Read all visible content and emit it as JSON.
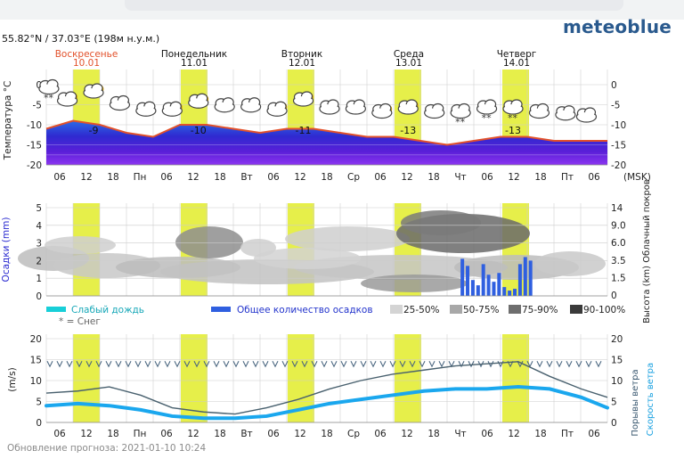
{
  "location": "55.82°N / 37.03°E (198м н.у.м.)",
  "brand": "meteoblue",
  "footer": "Обновление прогноза: 2021-01-10 10:24",
  "days": [
    {
      "name": "Воскресенье",
      "date": "10.01",
      "highlight": true
    },
    {
      "name": "Понедельник",
      "date": "11.01",
      "highlight": false
    },
    {
      "name": "Вторник",
      "date": "12.01",
      "highlight": false
    },
    {
      "name": "Среда",
      "date": "13.01",
      "highlight": false
    },
    {
      "name": "Четверг",
      "date": "14.01",
      "highlight": false
    }
  ],
  "x_ticks": [
    "06",
    "12",
    "18",
    "Пн",
    "06",
    "12",
    "18",
    "Вт",
    "06",
    "12",
    "18",
    "Ср",
    "06",
    "12",
    "18",
    "Чт",
    "06",
    "12",
    "18",
    "Пт",
    "06"
  ],
  "x_unit": "(MSK)",
  "colors": {
    "day_highlight": "#e6ef4a",
    "sunday": "#e2512b",
    "temp_line": "#e2512b",
    "precip_bar": "#2f5fe0",
    "wind_speed": "#1aa7ee",
    "wind_gust": "#48606e",
    "brand": "#2a5a8e"
  },
  "chart_data": [
    {
      "type": "area",
      "ylabel": "Температура °C",
      "ylim": [
        -20,
        0
      ],
      "yticks": [
        0,
        -5,
        -10,
        -15,
        -20
      ],
      "x_hours": [
        0,
        6,
        12,
        18,
        24,
        30,
        36,
        42,
        48,
        54,
        60,
        66,
        72,
        78,
        84,
        90,
        96,
        102,
        108,
        114,
        120,
        126
      ],
      "temperature": [
        -11,
        -9,
        -10,
        -12,
        -13,
        -10,
        -10,
        -11,
        -12,
        -11,
        -11,
        -12,
        -13,
        -13,
        -14,
        -15,
        -14,
        -13,
        -13,
        -14,
        -14,
        -14
      ],
      "labels": [
        {
          "x": 18,
          "text": "-9"
        },
        {
          "x": 58,
          "text": "-10"
        },
        {
          "x": 98,
          "text": "-11"
        },
        {
          "x": 138,
          "text": "-13"
        },
        {
          "x": 178,
          "text": "-13"
        }
      ],
      "icons": [
        {
          "x": 1,
          "icon": "cloud-snow-icon",
          "y": -1
        },
        {
          "x": 8,
          "icon": "cloud-sun-icon",
          "y": -4
        },
        {
          "x": 18,
          "icon": "cloud-sun-icon",
          "y": -2
        },
        {
          "x": 28,
          "icon": "cloud-icon",
          "y": -5
        },
        {
          "x": 38,
          "icon": "cloud-icon",
          "y": -6.5
        },
        {
          "x": 48,
          "icon": "cloud-sun-icon",
          "y": -6.5
        },
        {
          "x": 58,
          "icon": "cloud-sun-icon",
          "y": -4.5
        },
        {
          "x": 68,
          "icon": "cloud-icon",
          "y": -5.5
        },
        {
          "x": 78,
          "icon": "cloud-icon",
          "y": -5.5
        },
        {
          "x": 88,
          "icon": "cloud-sun-icon",
          "y": -6.5
        },
        {
          "x": 98,
          "icon": "cloud-sun-icon",
          "y": -4
        },
        {
          "x": 108,
          "icon": "cloud-icon",
          "y": -6
        },
        {
          "x": 118,
          "icon": "cloud-icon",
          "y": -6
        },
        {
          "x": 128,
          "icon": "cloud-sun-icon",
          "y": -7
        },
        {
          "x": 138,
          "icon": "cloud-sun-icon",
          "y": -6
        },
        {
          "x": 148,
          "icon": "cloud-icon",
          "y": -7
        },
        {
          "x": 158,
          "icon": "cloud-snow-icon",
          "y": -7
        },
        {
          "x": 168,
          "icon": "cloud-snow-icon",
          "y": -6
        },
        {
          "x": 178,
          "icon": "cloud-snow-icon",
          "y": -6
        },
        {
          "x": 188,
          "icon": "cloud-icon",
          "y": -7
        },
        {
          "x": 198,
          "icon": "cloud-icon",
          "y": -7.5
        },
        {
          "x": 206,
          "icon": "cloud-icon",
          "y": -8
        }
      ]
    },
    {
      "type": "bar",
      "ylabel_left": "Осадки (mm)",
      "ylabel_right": "Высота (km) Облачный покров",
      "ylim": [
        0,
        5
      ],
      "yticks_left": [
        0,
        1,
        2,
        3,
        4,
        5
      ],
      "yticks_right": [
        "14",
        "9.0",
        "6.0",
        "3.5",
        "1.5",
        "0"
      ],
      "precip_hours": [
        158,
        160,
        162,
        164,
        166,
        168,
        170,
        172,
        174,
        176,
        178,
        180,
        182,
        184
      ],
      "precip_mm": [
        2.1,
        1.7,
        0.9,
        0.6,
        1.8,
        1.2,
        0.8,
        1.3,
        0.5,
        0.3,
        0.4,
        1.8,
        2.2,
        2.0
      ],
      "legend": [
        {
          "label": "Слабый дождь",
          "type": "rain"
        },
        {
          "label": "Общее количество осадков",
          "type": "total"
        },
        {
          "label": "25-50%",
          "type": "cloud25"
        },
        {
          "label": "50-75%",
          "type": "cloud50"
        },
        {
          "label": "75-90%",
          "type": "cloud75"
        },
        {
          "label": "90-100%",
          "type": "cloud90"
        }
      ],
      "snow_note": "* = Снег"
    },
    {
      "type": "line",
      "ylabel_left": "(m/s)",
      "ylabel_right_1": "Порывы ветра",
      "ylabel_right_2": "Скорость ветра",
      "ylim": [
        0,
        20
      ],
      "yticks": [
        0,
        5,
        10,
        15,
        20
      ],
      "x_hours": [
        0,
        12,
        24,
        36,
        48,
        60,
        72,
        84,
        96,
        108,
        120,
        132,
        144,
        156,
        168,
        180,
        192,
        204,
        214
      ],
      "gust": [
        7,
        7.5,
        8.5,
        6.5,
        3.5,
        2.5,
        2,
        3.5,
        5.5,
        8,
        10,
        11.5,
        12.5,
        13.5,
        14,
        14.5,
        11,
        8,
        6
      ],
      "speed": [
        4,
        4.5,
        4,
        3,
        1.5,
        1,
        1,
        1.5,
        3,
        4.5,
        5.5,
        6.5,
        7.5,
        8,
        8,
        8.5,
        8,
        6,
        3.5
      ]
    }
  ]
}
